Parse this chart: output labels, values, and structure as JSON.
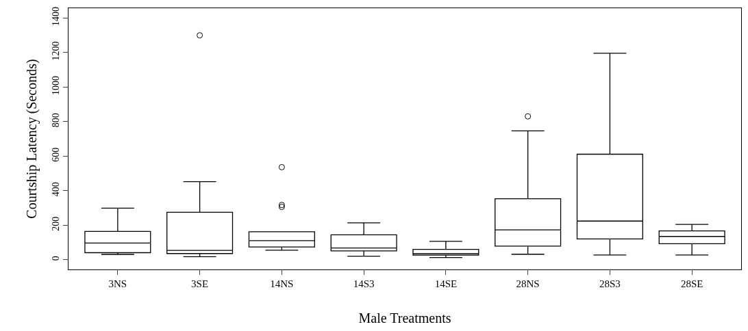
{
  "chart_data": {
    "type": "box",
    "xlabel": "Male Treatments",
    "ylabel": "Courtship Latency (Seconds)",
    "categories": [
      "3NS",
      "3SE",
      "14NS",
      "14S3",
      "14SE",
      "28NS",
      "28S3",
      "28SE"
    ],
    "boxes": [
      {
        "low": 31,
        "q1": 41,
        "median": 97,
        "q3": 164,
        "high": 299
      },
      {
        "low": 18,
        "q1": 36,
        "median": 54,
        "q3": 275,
        "high": 452,
        "outliers": [
          1299
        ]
      },
      {
        "low": 55,
        "q1": 74,
        "median": 111,
        "q3": 162,
        "high": 162,
        "outliers": [
          536,
          317,
          306
        ]
      },
      {
        "low": 21,
        "q1": 51,
        "median": 68,
        "q3": 144,
        "high": 214
      },
      {
        "low": 13,
        "q1": 27,
        "median": 35,
        "q3": 60,
        "high": 107
      },
      {
        "low": 32,
        "q1": 79,
        "median": 173,
        "q3": 353,
        "high": 746,
        "outliers": [
          830
        ]
      },
      {
        "low": 28,
        "q1": 121,
        "median": 224,
        "q3": 611,
        "high": 1195
      },
      {
        "low": 28,
        "q1": 93,
        "median": 135,
        "q3": 167,
        "high": 205
      }
    ],
    "color": "#000000",
    "ylim": [
      -56,
      1456
    ],
    "yticks": [
      0,
      200,
      400,
      600,
      800,
      1000,
      1200,
      1400
    ],
    "grid": false
  }
}
